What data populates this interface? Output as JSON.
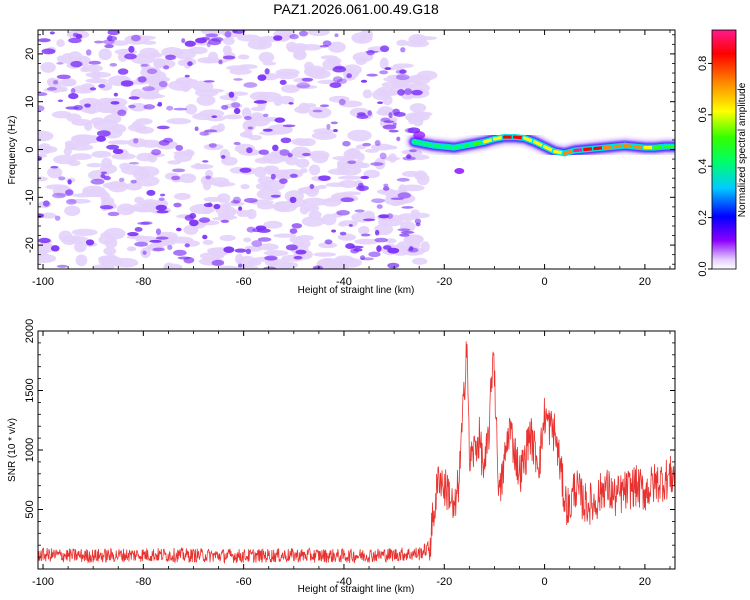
{
  "title": "PAZ1.2026.061.00.49.G18",
  "colors": {
    "snr_line": "#e8322f",
    "scatter_purple": "#7b2ff7",
    "scatter_light": "#e4d2fb",
    "colorbar_stops": [
      "#ffffff",
      "#8a00ff",
      "#0000ff",
      "#00ffff",
      "#00ff00",
      "#ffff00",
      "#ff8800",
      "#ff0000",
      "#ff1a8c"
    ]
  },
  "chart_data": [
    {
      "type": "heatmap",
      "title": "PAZ1.2026.061.00.49.G18",
      "xlabel": "Height of straight line (km)",
      "ylabel": "Frequency (Hz)",
      "xlim": [
        -101,
        26
      ],
      "ylim": [
        -25,
        25
      ],
      "xticks": [
        -100,
        -80,
        -60,
        -40,
        -20,
        0,
        20
      ],
      "yticks": [
        -20,
        -10,
        0,
        10,
        20
      ],
      "noise_region_x": [
        -101,
        -25
      ],
      "signal_track": {
        "x": [
          -26,
          -24,
          -22,
          -20,
          -18,
          -16,
          -14,
          -12,
          -10,
          -8,
          -6,
          -4,
          -2,
          0,
          2,
          4,
          6,
          8,
          10,
          12,
          14,
          16,
          18,
          20,
          22,
          24,
          26
        ],
        "freq": [
          1.6,
          1.2,
          0.8,
          0.6,
          0.4,
          0.8,
          1.2,
          1.6,
          2.2,
          2.6,
          2.6,
          2.4,
          1.6,
          0.6,
          -0.4,
          -0.8,
          -0.2,
          0,
          0.2,
          0.4,
          0.6,
          0.8,
          0.6,
          0.4,
          0.4,
          0.6,
          0.6
        ],
        "amplitude": [
          0.45,
          0.45,
          0.5,
          0.45,
          0.4,
          0.45,
          0.55,
          0.6,
          0.65,
          0.78,
          0.95,
          0.8,
          0.65,
          0.6,
          0.65,
          0.75,
          0.95,
          0.95,
          0.92,
          0.85,
          0.8,
          0.85,
          0.8,
          0.7,
          0.6,
          0.6,
          0.55
        ]
      },
      "colorbar": {
        "label": "Normalized spectral amplitude",
        "ticks": [
          "0.0",
          "0.2",
          "0.4",
          "0.6",
          "0.8"
        ],
        "range": [
          0,
          0.93
        ]
      }
    },
    {
      "type": "line",
      "xlabel": "Height of straight line (km)",
      "ylabel": "SNR (10 * v/v)",
      "xlim": [
        -101,
        26
      ],
      "ylim": [
        0,
        2000
      ],
      "xticks": [
        -100,
        -80,
        -60,
        -40,
        -20,
        0,
        20
      ],
      "yticks": [
        500,
        1000,
        1500,
        2000
      ],
      "series": [
        {
          "name": "SNR",
          "x": [
            -101,
            -90,
            -80,
            -70,
            -60,
            -50,
            -40,
            -30,
            -25,
            -23,
            -22,
            -21,
            -20,
            -19,
            -18,
            -17,
            -16,
            -15.5,
            -15,
            -14,
            -13,
            -12,
            -11,
            -10.2,
            -9.5,
            -9,
            -8,
            -7,
            -6,
            -5,
            -4,
            -3,
            -2,
            -1,
            0,
            1,
            2,
            3,
            4,
            5,
            6,
            8,
            10,
            12,
            14,
            16,
            18,
            20,
            22,
            24,
            26
          ],
          "values": [
            120,
            110,
            120,
            115,
            110,
            115,
            110,
            120,
            130,
            180,
            500,
            800,
            680,
            650,
            450,
            780,
            1500,
            2000,
            900,
            1000,
            1100,
            800,
            1200,
            1900,
            1050,
            600,
            900,
            1200,
            1000,
            800,
            900,
            1150,
            1000,
            900,
            1300,
            1200,
            1150,
            900,
            580,
            500,
            700,
            550,
            550,
            700,
            600,
            650,
            700,
            650,
            720,
            750,
            800
          ]
        }
      ]
    }
  ]
}
